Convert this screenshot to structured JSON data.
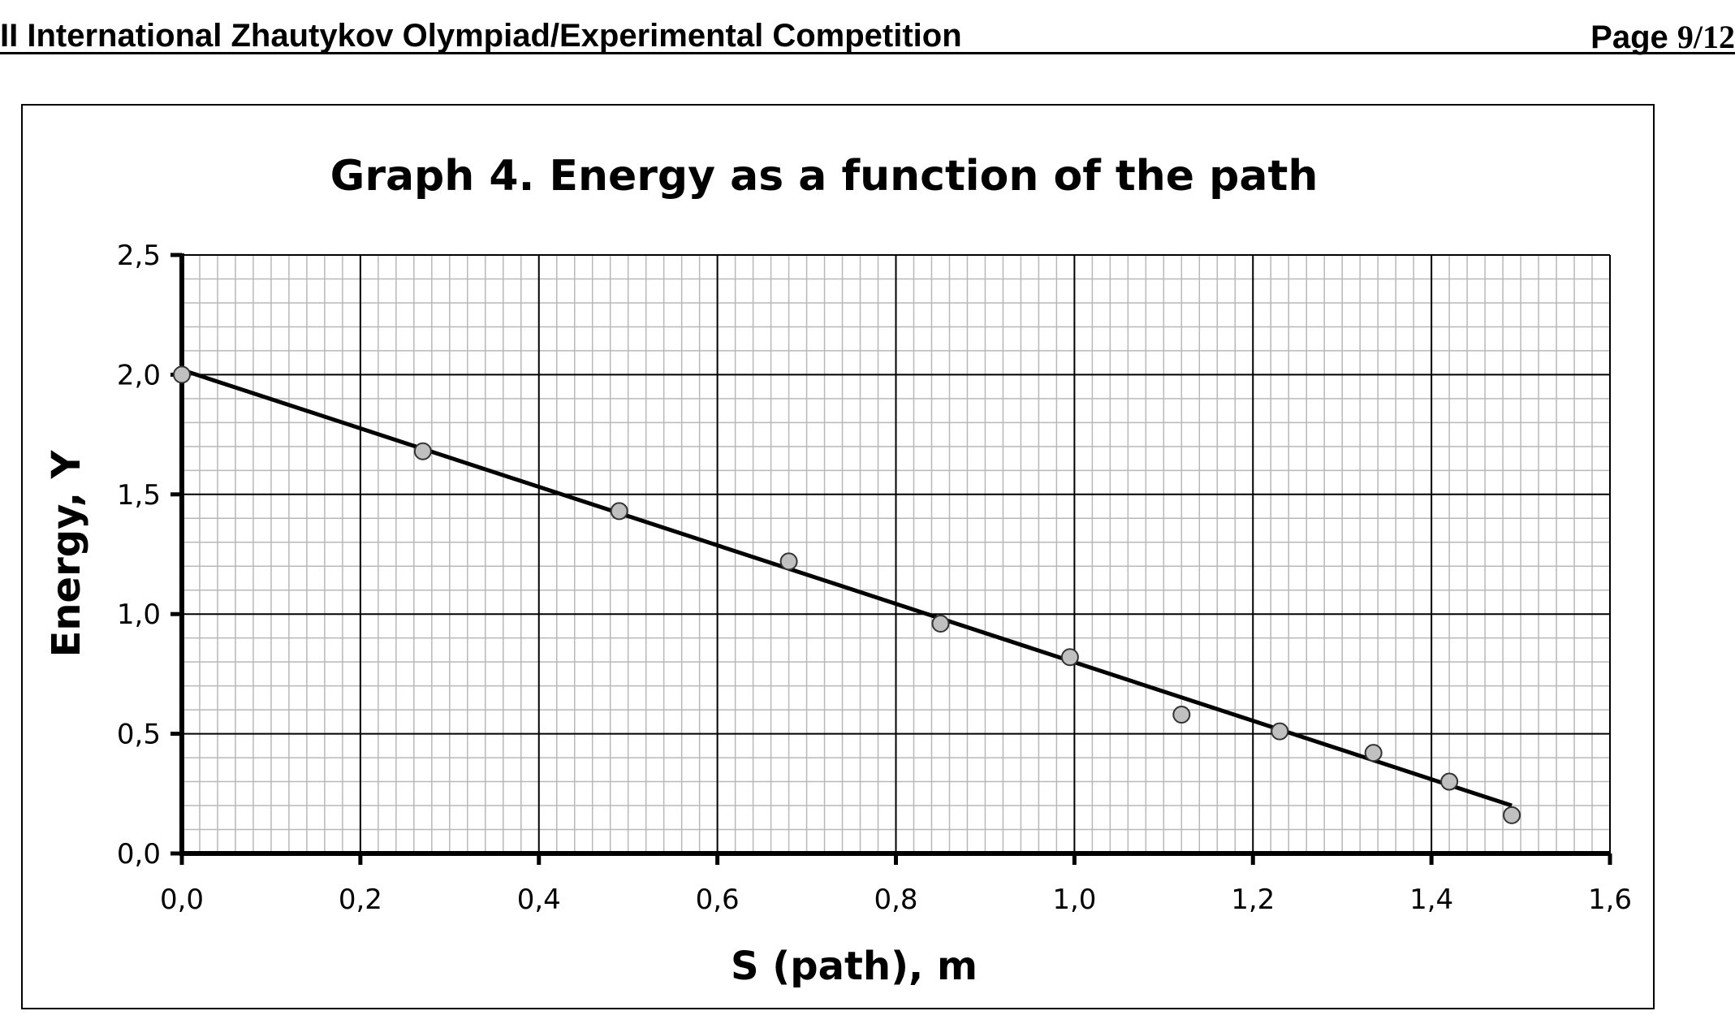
{
  "header": {
    "left_text": "II International Zhautykov Olympiad/Experimental Competition",
    "page_label": "Page ",
    "page_number": "9/12"
  },
  "chart_data": {
    "type": "scatter",
    "title": "Graph 4. Energy as a function of the path",
    "xlabel": "S (path), m",
    "ylabel": "Energy, Y",
    "xlim": [
      0,
      1.6
    ],
    "ylim": [
      0,
      2.5
    ],
    "x_ticks": [
      "0,0",
      "0,2",
      "0,4",
      "0,6",
      "0,8",
      "1,0",
      "1,2",
      "1,4",
      "1,6"
    ],
    "y_ticks": [
      "0,0",
      "0,5",
      "1,0",
      "1,5",
      "2,0",
      "2,5"
    ],
    "grid": "major and minor",
    "series": [
      {
        "marker": "circle",
        "color": "#c0c0c0",
        "x": [
          0.0,
          0.27,
          0.49,
          0.68,
          0.85,
          0.995,
          1.12,
          1.23,
          1.335,
          1.42,
          1.49
        ],
        "y": [
          2.0,
          1.68,
          1.43,
          1.22,
          0.96,
          0.82,
          0.58,
          0.51,
          0.42,
          0.3,
          0.16
        ]
      }
    ],
    "trendline": {
      "type": "linear",
      "color": "#000000",
      "x": [
        0.0,
        1.49
      ],
      "y": [
        2.02,
        0.2
      ]
    }
  }
}
